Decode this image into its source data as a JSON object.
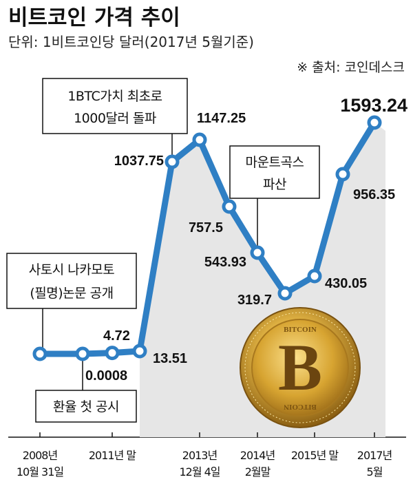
{
  "header": {
    "title": "비트코인 가격 추이",
    "unit": "단위: 1비트코인당 달러(2017년 5월기준)",
    "source": "※ 출처: 코인데스크"
  },
  "colors": {
    "line": "#2f7fc4",
    "marker_fill": "#ffffff",
    "area": "#e6e6e6",
    "coin_gold": "#d9a62c"
  },
  "callouts": [
    {
      "lines": [
        "1BTC가치 최초로",
        "1000달러 돌파"
      ]
    },
    {
      "lines": [
        "마운트곡스",
        "파산"
      ]
    },
    {
      "lines": [
        "사토시 나카모토",
        "(필명)논문 공개"
      ]
    },
    {
      "lines": [
        "환율 첫 공시"
      ]
    }
  ],
  "coin": {
    "top_text": "BITCOIN",
    "bottom_text": "BITCOIN",
    "symbol": "B",
    "icon": "bitcoin-coin-icon"
  },
  "chart_data": {
    "type": "line",
    "title": "비트코인 가격 추이",
    "subtitle": "단위: 1비트코인당 달러(2017년 5월기준)",
    "xlabel": "",
    "ylabel": "",
    "x_ticks": [
      {
        "label": [
          "2008년",
          "10월 31일"
        ],
        "index": 0
      },
      {
        "label": [
          "2011년 말"
        ],
        "index": 2
      },
      {
        "label": [
          "2013년",
          "12월 4일"
        ],
        "index": 5
      },
      {
        "label": [
          "2014년",
          "2월말"
        ],
        "index": 7
      },
      {
        "label": [
          "2015년 말"
        ],
        "index": 9
      },
      {
        "label": [
          "2017년",
          "5월"
        ],
        "index": 11
      }
    ],
    "points": [
      {
        "value": 0,
        "label": ""
      },
      {
        "value": 0.0008,
        "label": "0.0008"
      },
      {
        "value": 4.72,
        "label": "4.72"
      },
      {
        "value": 13.51,
        "label": "13.51"
      },
      {
        "value": 1037.75,
        "label": "1037.75"
      },
      {
        "value": 1147.25,
        "label": "1147.25"
      },
      {
        "value": 757.5,
        "label": "757.5"
      },
      {
        "value": 543.93,
        "label": "543.93"
      },
      {
        "value": 319.7,
        "label": "319.7"
      },
      {
        "value": 430.05,
        "label": "430.05"
      },
      {
        "value": 956.35,
        "label": "956.35"
      },
      {
        "value": 1593.24,
        "label": "1593.24"
      }
    ],
    "grid": false,
    "legend": "none"
  }
}
